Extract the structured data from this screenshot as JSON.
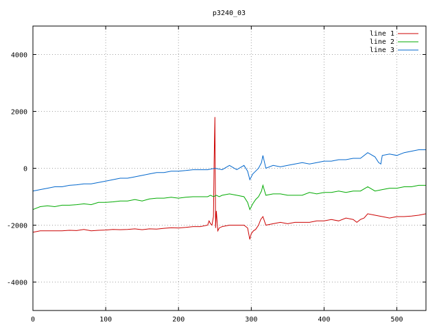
{
  "chart_data": {
    "type": "line",
    "title": "p3240_03",
    "xlabel": "",
    "ylabel": "",
    "xlim": [
      0,
      540
    ],
    "ylim": [
      -5000,
      5000
    ],
    "xticks": [
      0,
      100,
      200,
      300,
      400,
      500
    ],
    "yticks": [
      -4000,
      -2000,
      0,
      2000,
      4000
    ],
    "xtick_labels": [
      "0",
      "100",
      "200",
      "300",
      "400",
      "500"
    ],
    "ytick_labels": [
      "-4000",
      "-2000",
      "0",
      "2000",
      "4000"
    ],
    "grid": true,
    "legend_position": "top-right",
    "series": [
      {
        "name": "line 1",
        "color": "#cc0000",
        "x": [
          0,
          10,
          20,
          30,
          40,
          50,
          60,
          70,
          80,
          90,
          100,
          110,
          120,
          130,
          140,
          150,
          160,
          170,
          180,
          190,
          200,
          210,
          220,
          230,
          240,
          242,
          244,
          246,
          248,
          249,
          250,
          251,
          252,
          254,
          256,
          260,
          270,
          280,
          290,
          295,
          298,
          300,
          303,
          306,
          310,
          313,
          316,
          320,
          330,
          340,
          350,
          360,
          370,
          380,
          390,
          400,
          410,
          420,
          430,
          440,
          445,
          450,
          455,
          460,
          470,
          480,
          490,
          500,
          510,
          520,
          530,
          540
        ],
        "y": [
          -2250,
          -2200,
          -2200,
          -2200,
          -2200,
          -2180,
          -2190,
          -2150,
          -2200,
          -2180,
          -2170,
          -2150,
          -2160,
          -2150,
          -2130,
          -2160,
          -2130,
          -2140,
          -2110,
          -2090,
          -2100,
          -2080,
          -2050,
          -2050,
          -2000,
          -1850,
          -1950,
          -2000,
          -1700,
          300,
          1800,
          -2100,
          -1500,
          -2200,
          -2100,
          -2050,
          -2000,
          -2000,
          -2000,
          -2100,
          -2500,
          -2300,
          -2200,
          -2150,
          -2000,
          -1800,
          -1700,
          -2000,
          -1950,
          -1900,
          -1950,
          -1900,
          -1900,
          -1900,
          -1850,
          -1850,
          -1800,
          -1850,
          -1750,
          -1800,
          -1900,
          -1800,
          -1750,
          -1600,
          -1650,
          -1700,
          -1750,
          -1700,
          -1700,
          -1680,
          -1650,
          -1600
        ]
      },
      {
        "name": "line 2",
        "color": "#00aa00",
        "x": [
          0,
          10,
          20,
          30,
          40,
          50,
          60,
          70,
          80,
          90,
          100,
          110,
          120,
          130,
          140,
          150,
          160,
          170,
          180,
          190,
          200,
          210,
          220,
          230,
          240,
          244,
          248,
          252,
          256,
          260,
          270,
          280,
          290,
          295,
          298,
          302,
          306,
          310,
          314,
          316,
          320,
          330,
          340,
          350,
          360,
          370,
          380,
          390,
          400,
          410,
          420,
          430,
          440,
          450,
          460,
          470,
          480,
          490,
          500,
          510,
          520,
          530,
          540
        ],
        "y": [
          -1450,
          -1350,
          -1320,
          -1350,
          -1300,
          -1300,
          -1280,
          -1250,
          -1280,
          -1200,
          -1200,
          -1180,
          -1150,
          -1150,
          -1100,
          -1150,
          -1080,
          -1050,
          -1050,
          -1020,
          -1050,
          -1020,
          -1000,
          -1000,
          -1000,
          -950,
          -1000,
          -950,
          -1000,
          -950,
          -900,
          -950,
          -1000,
          -1200,
          -1450,
          -1250,
          -1100,
          -1000,
          -800,
          -600,
          -950,
          -900,
          -900,
          -950,
          -950,
          -950,
          -850,
          -900,
          -850,
          -850,
          -800,
          -850,
          -800,
          -800,
          -650,
          -800,
          -750,
          -700,
          -700,
          -650,
          -650,
          -600,
          -600
        ]
      },
      {
        "name": "line 3",
        "color": "#0066cc",
        "x": [
          0,
          10,
          20,
          30,
          40,
          50,
          60,
          70,
          80,
          90,
          100,
          110,
          120,
          130,
          140,
          150,
          160,
          170,
          180,
          190,
          200,
          210,
          220,
          230,
          240,
          250,
          260,
          270,
          280,
          290,
          295,
          298,
          302,
          306,
          310,
          314,
          316,
          320,
          330,
          340,
          350,
          360,
          370,
          380,
          390,
          400,
          410,
          420,
          430,
          440,
          450,
          460,
          470,
          475,
          478,
          480,
          490,
          500,
          510,
          520,
          530,
          540
        ],
        "y": [
          -800,
          -750,
          -700,
          -650,
          -650,
          -600,
          -580,
          -550,
          -550,
          -500,
          -450,
          -400,
          -350,
          -350,
          -300,
          -250,
          -200,
          -150,
          -150,
          -100,
          -100,
          -80,
          -50,
          -50,
          -50,
          0,
          -50,
          100,
          -50,
          100,
          -100,
          -400,
          -200,
          -100,
          0,
          200,
          450,
          0,
          100,
          50,
          100,
          150,
          200,
          150,
          200,
          250,
          250,
          300,
          300,
          350,
          350,
          550,
          400,
          200,
          150,
          450,
          500,
          450,
          550,
          600,
          650,
          650
        ]
      }
    ]
  }
}
